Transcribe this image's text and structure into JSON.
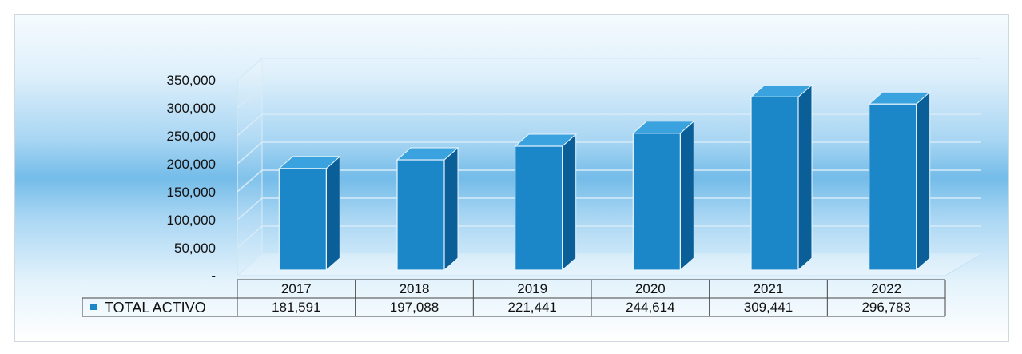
{
  "chart_data": {
    "type": "bar",
    "categories": [
      "2017",
      "2018",
      "2019",
      "2020",
      "2021",
      "2022"
    ],
    "series": [
      {
        "name": "TOTAL ACTIVO",
        "values": [
          181591,
          197088,
          221441,
          244614,
          309441,
          296783
        ],
        "labels": [
          "181,591",
          "197,088",
          "221,441",
          "244,614",
          "309,441",
          "296,783"
        ],
        "color": "#1b86c8"
      }
    ],
    "yticks": [
      "-",
      "50,000",
      "100,000",
      "150,000",
      "200,000",
      "250,000",
      "300,000",
      "350,000"
    ],
    "ylim": [
      0,
      350000
    ],
    "style": "3d",
    "grid": true,
    "legend": "data-table-left"
  }
}
